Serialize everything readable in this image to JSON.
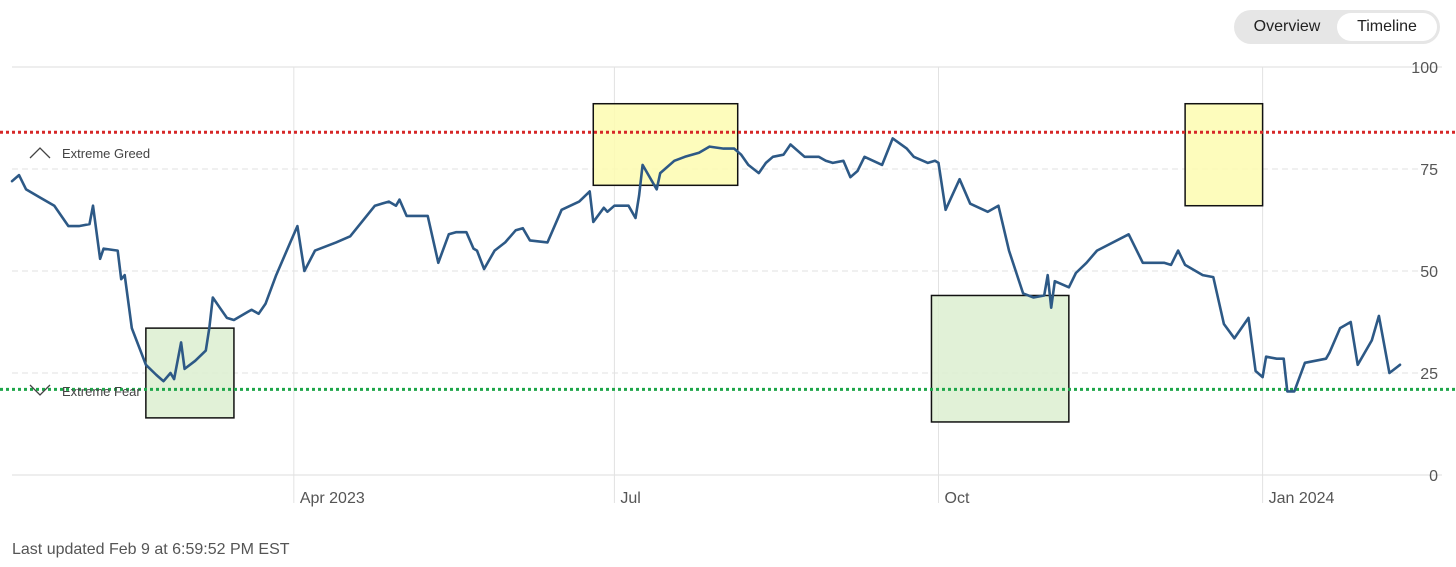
{
  "header": {
    "toggle": [
      {
        "label": "Overview",
        "active": false
      },
      {
        "label": "Timeline",
        "active": true
      }
    ]
  },
  "footer": {
    "last_updated": "Last updated Feb 9 at 6:59:52 PM EST"
  },
  "colors": {
    "line": "#2d5986",
    "grid": "#e2e2e2",
    "extreme_greed_line": "#d62728",
    "extreme_fear_line": "#1fa64a",
    "highlight_green": "#dcefd0",
    "highlight_yellow": "#fdfbb0"
  },
  "chart_data": {
    "type": "line",
    "title": "",
    "xlabel": "",
    "ylabel": "",
    "x_range": [
      "2023-01-11",
      "2024-02-09"
    ],
    "ylim": [
      0,
      100
    ],
    "y_ticks": [
      0,
      25,
      50,
      75,
      100
    ],
    "x_ticks": [
      {
        "label": "Apr 2023",
        "date": "2023-04-01"
      },
      {
        "label": "Jul",
        "date": "2023-07-01"
      },
      {
        "label": "Oct",
        "date": "2023-10-01"
      },
      {
        "label": "Jan 2024",
        "date": "2024-01-01"
      }
    ],
    "reference_lines": [
      {
        "label": "Extreme Greed",
        "value": 84,
        "style": "dotted",
        "color": "#d62728"
      },
      {
        "label": "Extreme Fear",
        "value": 21,
        "style": "dotted",
        "color": "#1fa64a"
      }
    ],
    "highlighted_regions": [
      {
        "start": "2023-02-18",
        "end": "2023-03-15",
        "y_range": [
          14,
          36
        ],
        "kind": "fear"
      },
      {
        "start": "2023-06-25",
        "end": "2023-08-05",
        "y_range": [
          71,
          91
        ],
        "kind": "greed"
      },
      {
        "start": "2023-09-29",
        "end": "2023-11-07",
        "y_range": [
          13,
          44
        ],
        "kind": "fear"
      },
      {
        "start": "2023-12-10",
        "end": "2024-01-01",
        "y_range": [
          66,
          91
        ],
        "kind": "greed"
      }
    ],
    "series": [
      {
        "points": [
          [
            "2023-01-11",
            72
          ],
          [
            "2023-01-13",
            73.5
          ],
          [
            "2023-01-15",
            70
          ],
          [
            "2023-01-19",
            68
          ],
          [
            "2023-01-23",
            66
          ],
          [
            "2023-01-27",
            61
          ],
          [
            "2023-01-30",
            61
          ],
          [
            "2023-02-02",
            61.5
          ],
          [
            "2023-02-03",
            66
          ],
          [
            "2023-02-05",
            53
          ],
          [
            "2023-02-06",
            55.5
          ],
          [
            "2023-02-10",
            55
          ],
          [
            "2023-02-11",
            48
          ],
          [
            "2023-02-12",
            49
          ],
          [
            "2023-02-14",
            36
          ],
          [
            "2023-02-18",
            27
          ],
          [
            "2023-02-21",
            24.5
          ],
          [
            "2023-02-23",
            23
          ],
          [
            "2023-02-25",
            25
          ],
          [
            "2023-02-26",
            23.5
          ],
          [
            "2023-02-28",
            32.5
          ],
          [
            "2023-03-01",
            26
          ],
          [
            "2023-03-04",
            28
          ],
          [
            "2023-03-07",
            30.5
          ],
          [
            "2023-03-08",
            36
          ],
          [
            "2023-03-09",
            43.5
          ],
          [
            "2023-03-11",
            41
          ],
          [
            "2023-03-13",
            38.5
          ],
          [
            "2023-03-15",
            38
          ],
          [
            "2023-03-19",
            40
          ],
          [
            "2023-03-20",
            40.5
          ],
          [
            "2023-03-22",
            39.5
          ],
          [
            "2023-03-24",
            42
          ],
          [
            "2023-03-27",
            49
          ],
          [
            "2023-03-31",
            57
          ],
          [
            "2023-04-02",
            61
          ],
          [
            "2023-04-04",
            50
          ],
          [
            "2023-04-07",
            55
          ],
          [
            "2023-04-13",
            57
          ],
          [
            "2023-04-17",
            58.5
          ],
          [
            "2023-04-24",
            66
          ],
          [
            "2023-04-28",
            67
          ],
          [
            "2023-04-30",
            66
          ],
          [
            "2023-05-01",
            67.5
          ],
          [
            "2023-05-03",
            63.5
          ],
          [
            "2023-05-09",
            63.5
          ],
          [
            "2023-05-12",
            52
          ],
          [
            "2023-05-15",
            59
          ],
          [
            "2023-05-17",
            59.5
          ],
          [
            "2023-05-20",
            59.5
          ],
          [
            "2023-05-22",
            55.5
          ],
          [
            "2023-05-23",
            55
          ],
          [
            "2023-05-25",
            50.5
          ],
          [
            "2023-05-28",
            55
          ],
          [
            "2023-05-31",
            57
          ],
          [
            "2023-06-03",
            60
          ],
          [
            "2023-06-05",
            60.5
          ],
          [
            "2023-06-07",
            57.5
          ],
          [
            "2023-06-12",
            57
          ],
          [
            "2023-06-16",
            65
          ],
          [
            "2023-06-21",
            67
          ],
          [
            "2023-06-24",
            69.5
          ],
          [
            "2023-06-25",
            62
          ],
          [
            "2023-06-28",
            65.5
          ],
          [
            "2023-06-29",
            64.5
          ],
          [
            "2023-07-01",
            66
          ],
          [
            "2023-07-05",
            66
          ],
          [
            "2023-07-07",
            63
          ],
          [
            "2023-07-08",
            68.5
          ],
          [
            "2023-07-09",
            76
          ],
          [
            "2023-07-13",
            70
          ],
          [
            "2023-07-14",
            74
          ],
          [
            "2023-07-18",
            77
          ],
          [
            "2023-07-21",
            78
          ],
          [
            "2023-07-25",
            79
          ],
          [
            "2023-07-28",
            80.5
          ],
          [
            "2023-08-01",
            80
          ],
          [
            "2023-08-04",
            80
          ],
          [
            "2023-08-06",
            78.5
          ],
          [
            "2023-08-08",
            76
          ],
          [
            "2023-08-11",
            74
          ],
          [
            "2023-08-13",
            76.5
          ],
          [
            "2023-08-15",
            78
          ],
          [
            "2023-08-18",
            78.5
          ],
          [
            "2023-08-20",
            81
          ],
          [
            "2023-08-24",
            78
          ],
          [
            "2023-08-28",
            78
          ],
          [
            "2023-08-30",
            77
          ],
          [
            "2023-09-01",
            76.5
          ],
          [
            "2023-09-04",
            77
          ],
          [
            "2023-09-06",
            73
          ],
          [
            "2023-09-08",
            74.5
          ],
          [
            "2023-09-10",
            78
          ],
          [
            "2023-09-15",
            76
          ],
          [
            "2023-09-18",
            82.5
          ],
          [
            "2023-09-22",
            80
          ],
          [
            "2023-09-24",
            78
          ],
          [
            "2023-09-28",
            76.5
          ],
          [
            "2023-09-30",
            77
          ],
          [
            "2023-10-01",
            76.5
          ],
          [
            "2023-10-03",
            65
          ],
          [
            "2023-10-07",
            72.5
          ],
          [
            "2023-10-10",
            66.5
          ],
          [
            "2023-10-15",
            64.5
          ],
          [
            "2023-10-18",
            66
          ],
          [
            "2023-10-21",
            55
          ],
          [
            "2023-10-25",
            44.5
          ],
          [
            "2023-10-28",
            43.5
          ],
          [
            "2023-10-31",
            44
          ],
          [
            "2023-11-01",
            49
          ],
          [
            "2023-11-02",
            41
          ],
          [
            "2023-11-03",
            47.5
          ],
          [
            "2023-11-07",
            46
          ],
          [
            "2023-11-09",
            49.5
          ],
          [
            "2023-11-12",
            52
          ],
          [
            "2023-11-15",
            55
          ],
          [
            "2023-11-24",
            59
          ],
          [
            "2023-11-28",
            52
          ],
          [
            "2023-12-04",
            52
          ],
          [
            "2023-12-06",
            51.5
          ],
          [
            "2023-12-08",
            55
          ],
          [
            "2023-12-10",
            51.5
          ],
          [
            "2023-12-15",
            49
          ],
          [
            "2023-12-18",
            48.5
          ],
          [
            "2023-12-21",
            37
          ],
          [
            "2023-12-24",
            33.5
          ],
          [
            "2023-12-28",
            38.5
          ],
          [
            "2023-12-30",
            25.5
          ],
          [
            "2024-01-01",
            24
          ],
          [
            "2024-01-02",
            29
          ],
          [
            "2024-01-05",
            28.5
          ],
          [
            "2024-01-07",
            28.5
          ],
          [
            "2024-01-08",
            20.5
          ],
          [
            "2024-01-10",
            20.5
          ],
          [
            "2024-01-13",
            27.5
          ],
          [
            "2024-01-19",
            28.5
          ],
          [
            "2024-01-20",
            30
          ],
          [
            "2024-01-23",
            36
          ],
          [
            "2024-01-26",
            37.5
          ],
          [
            "2024-01-28",
            27
          ],
          [
            "2024-02-01",
            33
          ],
          [
            "2024-02-03",
            39
          ],
          [
            "2024-02-06",
            25
          ],
          [
            "2024-02-09",
            27
          ]
        ]
      }
    ]
  },
  "annotations": [
    {
      "text": "Extreme Greed"
    },
    {
      "text": "Extreme Fear"
    }
  ]
}
